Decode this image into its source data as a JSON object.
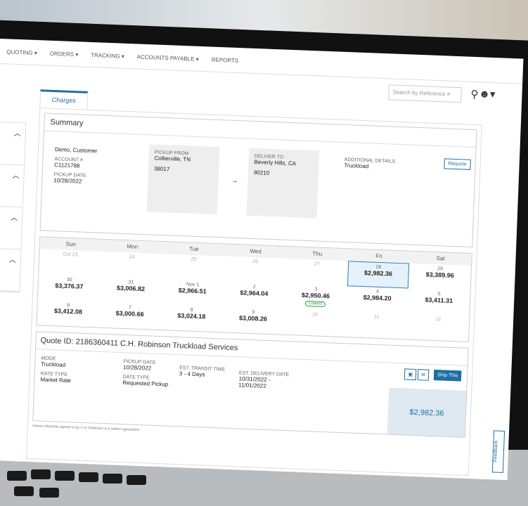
{
  "nav": {
    "items": [
      "QUOTING ▾",
      "ORDERS ▾",
      "TRACKING ▾",
      "ACCOUNTS PAYABLE ▾",
      "REPORTS"
    ]
  },
  "search": {
    "placeholder": "Search by Reference #"
  },
  "icons": {
    "search": "search-icon",
    "user": "user-icon"
  },
  "tab": "Charges",
  "summary": {
    "title": "Summary",
    "customer": "Demo, Customer",
    "account_label": "ACCOUNT #",
    "account": "C1121788",
    "pickup_date_label": "PICKUP DATE",
    "pickup_date": "10/28/2022",
    "pickup_from_label": "PICKUP FROM",
    "pickup_from": "Collierville, TN",
    "pickup_zip": "38017",
    "arrow": "→",
    "deliver_to_label": "DELIVER TO",
    "deliver_to": "Beverly Hills, CA",
    "deliver_zip": "90210",
    "additional_label": "ADDITIONAL DETAILS",
    "additional": "Truckload",
    "requote": "Requote"
  },
  "calendar": {
    "days": [
      "Sun",
      "Mon",
      "Tue",
      "Wed",
      "Thu",
      "Fri",
      "Sat"
    ],
    "cells": [
      {
        "d": "Oct 23",
        "p": ""
      },
      {
        "d": "24",
        "p": ""
      },
      {
        "d": "25",
        "p": ""
      },
      {
        "d": "26",
        "p": ""
      },
      {
        "d": "27",
        "p": ""
      },
      {
        "d": "28",
        "p": "$2,982.36",
        "sel": true
      },
      {
        "d": "29",
        "p": "$3,389.96"
      },
      {
        "d": "30",
        "p": "$3,376.37"
      },
      {
        "d": "31",
        "p": "$3,006.82"
      },
      {
        "d": "Nov 1",
        "p": "$2,966.51"
      },
      {
        "d": "2",
        "p": "$2,964.04"
      },
      {
        "d": "3",
        "p": "$2,950.46",
        "badge": "Lowest"
      },
      {
        "d": "4",
        "p": "$2,984.20"
      },
      {
        "d": "5",
        "p": "$3,411.31"
      },
      {
        "d": "6",
        "p": "$3,412.08"
      },
      {
        "d": "7",
        "p": "$3,000.66"
      },
      {
        "d": "8",
        "p": "$3,024.18"
      },
      {
        "d": "9",
        "p": "$3,008.26"
      },
      {
        "d": "10",
        "p": ""
      },
      {
        "d": "11",
        "p": ""
      },
      {
        "d": "12",
        "p": ""
      }
    ],
    "lowest_color": "#2e9a45",
    "selected_color": "#2a7fc1"
  },
  "quote": {
    "title": "Quote ID: 2186360411  C.H. Robinson Truckload Services",
    "mode_label": "MODE",
    "mode": "Truckload",
    "rate_type_label": "RATE TYPE",
    "rate_type": "Market Rate",
    "pickup_date_label": "PICKUP DATE",
    "pickup_date": "10/28/2022",
    "date_type_label": "DATE TYPE",
    "date_type": "Requested Pickup",
    "transit_label": "EST. TRANSIT TIME",
    "transit": "3 - 4 Days",
    "delivery_label": "EST. DELIVERY DATE",
    "delivery": "10/31/2022 -",
    "delivery2": "11/01/2022",
    "ship": "Ship This",
    "price": "$2,982.36"
  },
  "disclaimer": "Unless otherwise agreed to by C.H. Robinson in a written agreement ...",
  "feedback": "Feedback",
  "brand_color": "#1f6fa6"
}
